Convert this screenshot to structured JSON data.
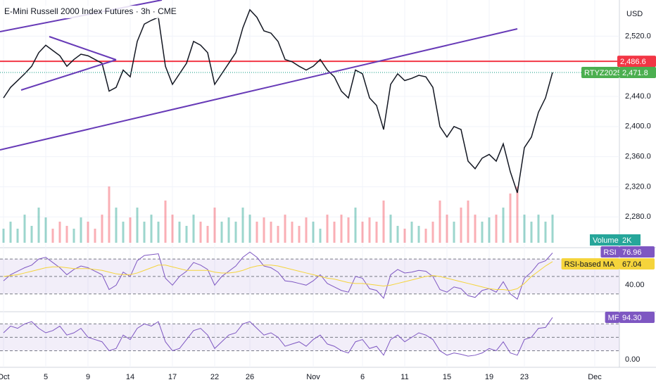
{
  "chart_data": [
    {
      "type": "line",
      "title": "E-Mini Russell 2000 Index Futures · 3h · CME",
      "currency": "USD",
      "categories": [
        "Oct",
        null,
        null,
        null,
        null,
        null,
        "5",
        null,
        null,
        null,
        null,
        null,
        "9",
        null,
        null,
        null,
        null,
        null,
        "14",
        null,
        null,
        null,
        null,
        null,
        "17",
        null,
        null,
        null,
        null,
        null,
        "22",
        null,
        null,
        null,
        null,
        "26",
        null,
        null,
        null,
        null,
        null,
        null,
        null,
        null,
        "Nov",
        null,
        null,
        null,
        null,
        null,
        null,
        "6",
        null,
        null,
        null,
        null,
        null,
        "11",
        null,
        null,
        null,
        null,
        null,
        "15",
        null,
        null,
        null,
        null,
        null,
        "19",
        null,
        null,
        null,
        null,
        "23",
        null,
        null,
        null,
        null,
        null,
        null,
        null,
        null,
        null,
        "Dec"
      ],
      "series": [
        {
          "name": "RTYZ2025",
          "color": "#131722",
          "last_label": "2,471.8",
          "values": [
            2438,
            2452,
            2461,
            2470,
            2480,
            2498,
            2508,
            2501,
            2494,
            2480,
            2489,
            2496,
            2494,
            2489,
            2484,
            2447,
            2452,
            2475,
            2466,
            2513,
            2536,
            2541,
            2545,
            2480,
            2456,
            2470,
            2484,
            2513,
            2508,
            2498,
            2456,
            2470,
            2484,
            2498,
            2531,
            2555,
            2545,
            2527,
            2524,
            2513,
            2489,
            2486,
            2480,
            2475,
            2480,
            2489,
            2475,
            2466,
            2447,
            2438,
            2475,
            2470,
            2438,
            2428,
            2396,
            2456,
            2470,
            2461,
            2464,
            2468,
            2466,
            2452,
            2400,
            2386,
            2400,
            2396,
            2354,
            2344,
            2358,
            2363,
            2354,
            2377,
            2340,
            2312,
            2372,
            2386,
            2419,
            2438,
            2471.8,
            null,
            null,
            null,
            null,
            null,
            null
          ]
        }
      ],
      "volume": {
        "name": "Volume",
        "label": "2K",
        "values": [
          1,
          1.5,
          1,
          2,
          1.2,
          2.5,
          1.8,
          1,
          1.5,
          1.2,
          1,
          1.8,
          1.5,
          1,
          2,
          4,
          2.5,
          1.5,
          1.8,
          2.5,
          1.5,
          2,
          1.5,
          3,
          2,
          1.5,
          1.2,
          2,
          1.5,
          1.2,
          2.5,
          1.5,
          1.8,
          1.5,
          2.5,
          2,
          1.5,
          1.8,
          1.5,
          1.2,
          2,
          1.5,
          1.2,
          1.8,
          1.5,
          1,
          2,
          1.5,
          2,
          1.8,
          2.5,
          1.5,
          1.8,
          1.5,
          3,
          2,
          1.2,
          1,
          1.5,
          1.2,
          1,
          1.5,
          3,
          2,
          1.5,
          2.5,
          3,
          2,
          1.5,
          1.8,
          2,
          2.5,
          3.5,
          4,
          2,
          1.5,
          2,
          1.5,
          2,
          null,
          null,
          null,
          null,
          null,
          null
        ]
      },
      "levels": [
        {
          "value": 2486.6,
          "label": "2,486.6",
          "color": "#f23645"
        }
      ],
      "ylim": [
        2241,
        2568
      ],
      "yticks": [
        {
          "value": 2280,
          "label": "2,280.0"
        },
        {
          "value": 2320,
          "label": "2,320.0"
        },
        {
          "value": 2360,
          "label": "2,360.0"
        },
        {
          "value": 2400,
          "label": "2,400.0"
        },
        {
          "value": 2440,
          "label": "2,440.0"
        },
        {
          "value": 2520,
          "label": "2,520.0"
        }
      ],
      "grid": true
    },
    {
      "type": "line",
      "series": [
        {
          "name": "RSI",
          "color": "#7e57c2",
          "last_label": "76.96",
          "values": [
            45,
            52,
            56,
            60,
            63,
            70,
            72,
            66,
            60,
            52,
            58,
            62,
            60,
            56,
            52,
            35,
            40,
            55,
            50,
            68,
            74,
            75,
            76,
            48,
            40,
            50,
            56,
            66,
            63,
            58,
            40,
            50,
            56,
            62,
            72,
            78,
            72,
            62,
            60,
            55,
            45,
            44,
            42,
            40,
            45,
            52,
            42,
            38,
            34,
            32,
            50,
            48,
            36,
            34,
            25,
            52,
            58,
            54,
            55,
            57,
            56,
            50,
            35,
            32,
            38,
            36,
            28,
            26,
            34,
            36,
            32,
            44,
            30,
            24,
            48,
            55,
            65,
            68,
            76.96
          ]
        },
        {
          "name": "RSI-based MA",
          "color": "#f5d43b",
          "last_label": "67.04",
          "values": [
            50,
            51,
            52,
            54,
            56,
            58,
            60,
            61,
            61,
            60,
            59,
            59,
            59,
            58,
            57,
            55,
            53,
            52,
            52,
            54,
            57,
            60,
            63,
            63,
            61,
            59,
            57,
            57,
            57,
            57,
            55,
            54,
            54,
            55,
            57,
            60,
            62,
            63,
            63,
            62,
            60,
            58,
            56,
            54,
            52,
            50,
            48,
            47,
            45,
            43,
            42,
            42,
            41,
            40,
            39,
            40,
            42,
            44,
            46,
            48,
            50,
            51,
            50,
            48,
            46,
            44,
            42,
            40,
            38,
            36,
            35,
            35,
            34,
            36,
            42,
            50,
            56,
            62,
            67.04
          ]
        }
      ],
      "levels": [
        70,
        50,
        30
      ],
      "ylim": [
        12,
        83
      ],
      "yticks": [
        {
          "value": 40,
          "label": "40.00"
        }
      ]
    },
    {
      "type": "line",
      "series": [
        {
          "name": "MF",
          "color": "#7e57c2",
          "last_label": "94.30",
          "values": [
            60,
            75,
            70,
            80,
            85,
            70,
            60,
            65,
            75,
            55,
            60,
            70,
            50,
            45,
            40,
            20,
            25,
            55,
            45,
            70,
            80,
            75,
            85,
            40,
            20,
            25,
            45,
            65,
            70,
            55,
            25,
            40,
            55,
            60,
            80,
            85,
            70,
            55,
            60,
            50,
            30,
            35,
            40,
            30,
            45,
            55,
            35,
            30,
            20,
            15,
            40,
            45,
            25,
            30,
            10,
            45,
            55,
            40,
            50,
            60,
            55,
            45,
            20,
            10,
            15,
            12,
            8,
            10,
            15,
            25,
            20,
            40,
            15,
            10,
            45,
            50,
            70,
            72,
            94.3
          ]
        }
      ],
      "levels": [
        80,
        50,
        20
      ],
      "ylim": [
        -17,
        104
      ],
      "yticks": [
        {
          "value": 0,
          "label": "0.00"
        }
      ]
    }
  ]
}
